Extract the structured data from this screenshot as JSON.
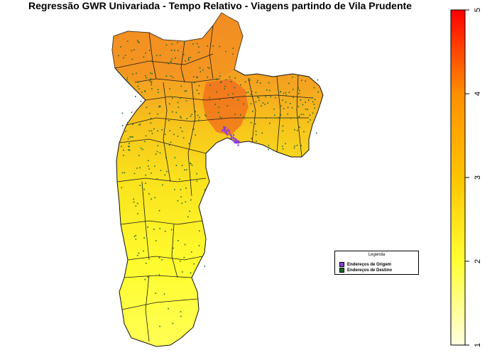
{
  "title": "Regressão GWR Univariada - Tempo Relativo - Viagens partindo de Vila Prudente",
  "legend": {
    "title": "Legenda",
    "items": [
      {
        "label": "Endereços de Origem",
        "color": "#8b3fd9"
      },
      {
        "label": "Endereços de Destino",
        "color": "#1f6b2a"
      }
    ]
  },
  "colorbar": {
    "min": 1,
    "max": 5,
    "ticks": [
      "1",
      "2",
      "3",
      "4",
      "5"
    ],
    "colors": [
      "#ffffe0",
      "#ffff33",
      "#ffc400",
      "#ff8f00",
      "#ff0000"
    ]
  },
  "map": {
    "fill_colors": {
      "north": "#f39021",
      "northeast": "#f7b81c",
      "east": "#f4d51a",
      "center": "#f06b1c",
      "south": "#f7ec1f",
      "farsouth": "#ffff3a"
    },
    "border_color": "#1a1a1a",
    "origin_color": "#8b3fd9",
    "destination_color": "#1f6b2a"
  }
}
